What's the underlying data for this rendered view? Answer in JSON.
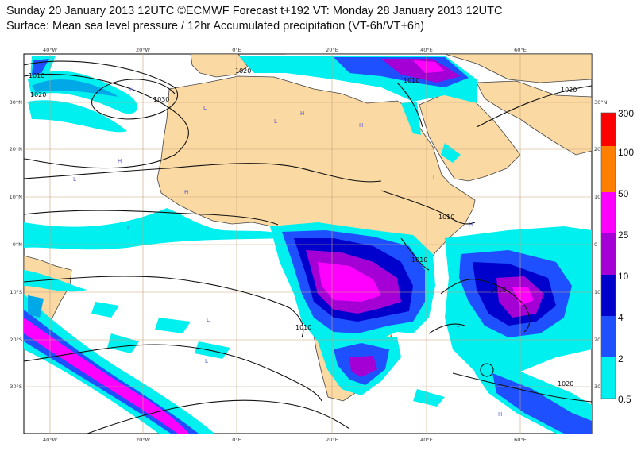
{
  "title_line1": "Sunday 20 January 2013 12UTC ©ECMWF Forecast t+192 VT: Monday 28 January 2013 12UTC",
  "title_line2": "Surface: Mean sea level pressure / 12hr Accumulated precipitation (VT-6h/VT+6h)",
  "colors": {
    "land": "#fbd9a3",
    "ocean": "#ffffff",
    "graticule": "#c9a27a",
    "c05": "#00f0f0",
    "c2": "#00a8e8",
    "c4": "#1e50ff",
    "c10": "#0000cc",
    "c25": "#a400d6",
    "c50": "#ff00ff",
    "c100": "#ff8000",
    "c300": "#ff0000"
  },
  "lon_labels": [
    "40°W",
    "20°W",
    "0°E",
    "20°E",
    "40°E",
    "60°E"
  ],
  "lat_labels": [
    "30°N",
    "20°N",
    "10°N",
    "0°N",
    "10°S",
    "20°S",
    "30°S"
  ],
  "right_lat_labels": [
    "30°N",
    "20",
    "10",
    "0",
    "10",
    "20",
    "30"
  ],
  "colorbar_labels": [
    "300",
    "100",
    "50",
    "25",
    "10",
    "4",
    "2",
    "0.5"
  ],
  "isobar_labels": [
    "1010",
    "1020",
    "1030",
    "1020",
    "1010",
    "1010",
    "1010",
    "1010",
    "1020",
    "1020",
    "1010"
  ],
  "high_marker": "H",
  "low_marker": "L"
}
